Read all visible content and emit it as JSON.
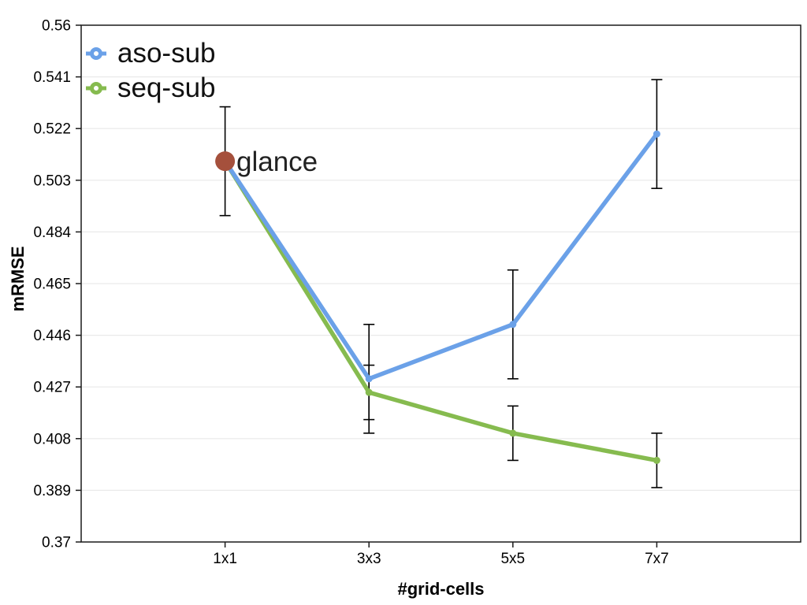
{
  "chart_data": {
    "type": "line",
    "title": "",
    "xlabel": "#grid-cells",
    "ylabel": "mRMSE",
    "categories": [
      "1x1",
      "3x3",
      "5x5",
      "7x7"
    ],
    "ylim": [
      0.37,
      0.56
    ],
    "ytick_labels": [
      "0.37",
      "0.389",
      "0.408",
      "0.427",
      "0.446",
      "0.465",
      "0.484",
      "0.503",
      "0.522",
      "0.541",
      "0.56"
    ],
    "grid": true,
    "legend_position": "top-left-inside",
    "series": [
      {
        "name": "aso-sub",
        "color": "#6BA1E8",
        "values": [
          0.51,
          0.43,
          0.45,
          0.52
        ],
        "error_plus": [
          0.02,
          0.02,
          0.02,
          0.02
        ],
        "error_minus": [
          0.02,
          0.02,
          0.02,
          0.02
        ]
      },
      {
        "name": "seq-sub",
        "color": "#86BB4F",
        "values": [
          0.51,
          0.425,
          0.41,
          0.4
        ],
        "error_plus": [
          null,
          0.01,
          0.01,
          0.01
        ],
        "error_minus": [
          null,
          0.01,
          0.01,
          0.01
        ]
      }
    ],
    "annotation": {
      "label": "glance",
      "category": "1x1",
      "value": 0.51,
      "color": "#A5503C"
    },
    "error_bar_color": "#000000",
    "gridline_color": "#E9E9E9",
    "axis_color": "#1A1A1A",
    "tick_font_size": 19
  }
}
